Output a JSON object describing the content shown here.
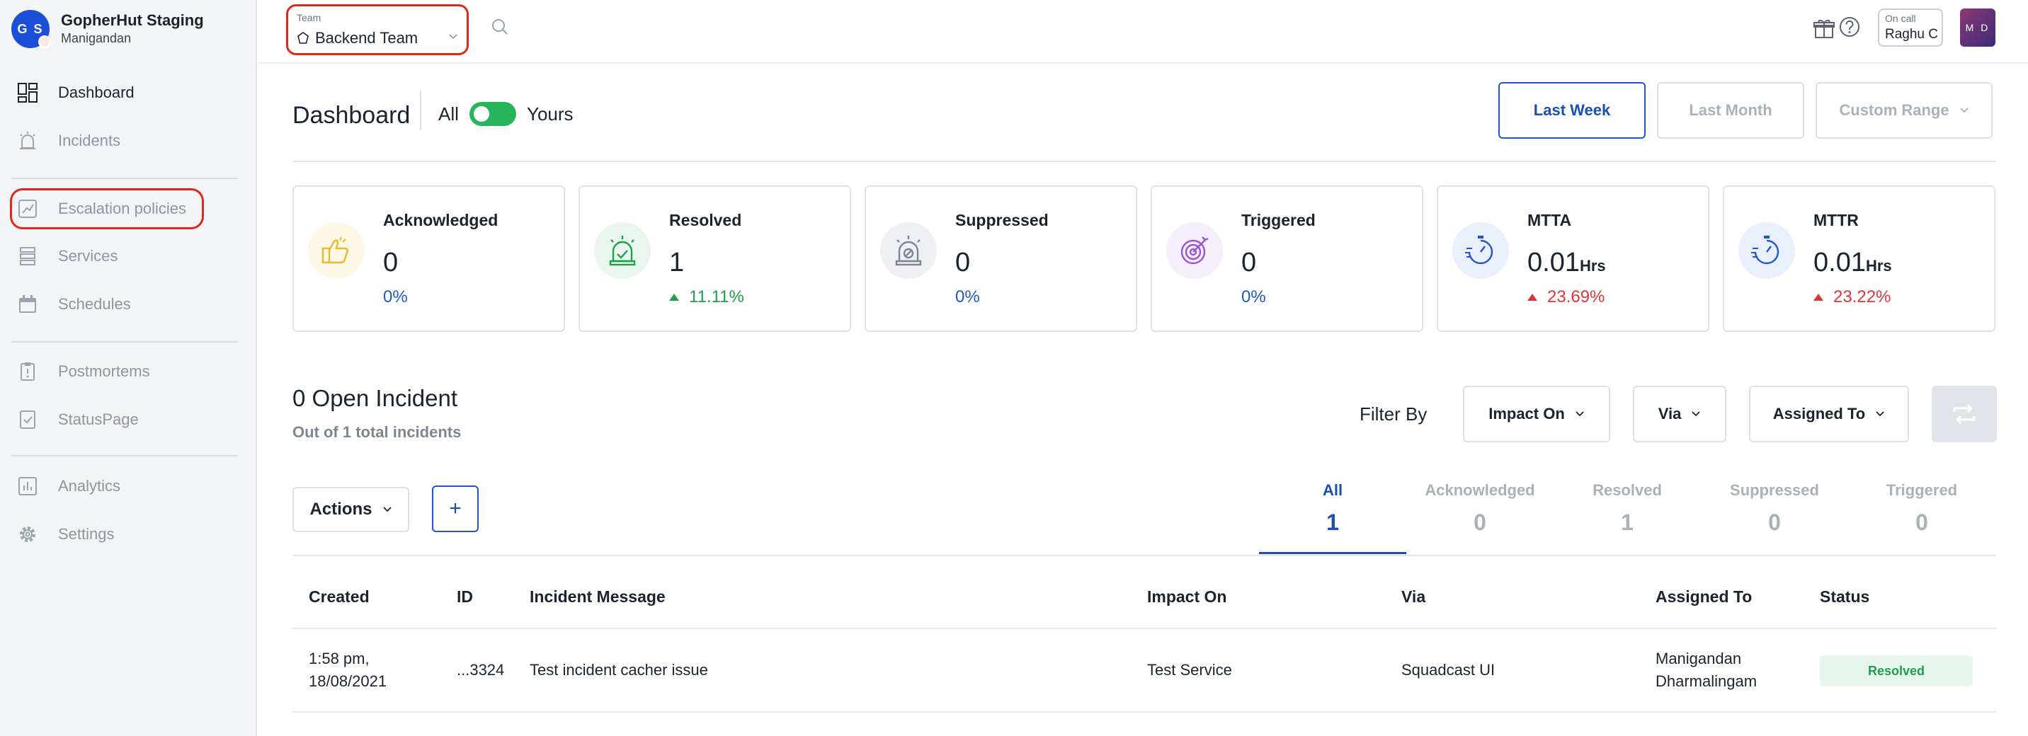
{
  "org": {
    "initials": "G S",
    "name": "GopherHut Staging",
    "user": "Manigandan"
  },
  "sidebar": {
    "items": [
      {
        "label": "Dashboard",
        "icon": "dashboard-icon"
      },
      {
        "label": "Incidents",
        "icon": "incident-icon"
      },
      {
        "label": "Escalation policies",
        "icon": "escalation-icon"
      },
      {
        "label": "Services",
        "icon": "services-icon"
      },
      {
        "label": "Schedules",
        "icon": "calendar-icon"
      },
      {
        "label": "Postmortems",
        "icon": "postmortem-icon"
      },
      {
        "label": "StatusPage",
        "icon": "statuspage-icon"
      },
      {
        "label": "Analytics",
        "icon": "analytics-icon"
      },
      {
        "label": "Settings",
        "icon": "gear-icon"
      }
    ]
  },
  "topbar": {
    "team_caption": "Team",
    "team_value": "Backend Team",
    "oncall_caption": "On call",
    "oncall_value": "Raghu C",
    "user_initials": "M D"
  },
  "header": {
    "title": "Dashboard",
    "toggle_left": "All",
    "toggle_right": "Yours",
    "range_buttons": [
      "Last Week",
      "Last Month",
      "Custom Range"
    ]
  },
  "cards": [
    {
      "title": "Acknowledged",
      "value": "0",
      "unit": "",
      "pct": "0%",
      "trend": "none",
      "color": "#2057c8"
    },
    {
      "title": "Resolved",
      "value": "1",
      "unit": "",
      "pct": "11.11%",
      "trend": "up",
      "color": "#1fa04c"
    },
    {
      "title": "Suppressed",
      "value": "0",
      "unit": "",
      "pct": "0%",
      "trend": "none",
      "color": "#2057c8"
    },
    {
      "title": "Triggered",
      "value": "0",
      "unit": "",
      "pct": "0%",
      "trend": "none",
      "color": "#2057c8"
    },
    {
      "title": "MTTA",
      "value": "0.01",
      "unit": "Hrs",
      "pct": "23.69%",
      "trend": "up",
      "color": "#e0343a"
    },
    {
      "title": "MTTR",
      "value": "0.01",
      "unit": "Hrs",
      "pct": "23.22%",
      "trend": "up",
      "color": "#e0343a"
    }
  ],
  "incidents": {
    "title": "0 Open Incident",
    "subtitle": "Out of 1 total incidents",
    "filter_label": "Filter By",
    "filters": [
      "Impact On",
      "Via",
      "Assigned To"
    ],
    "actions_label": "Actions",
    "add_label": "+",
    "tabs": [
      {
        "label": "All",
        "count": "1"
      },
      {
        "label": "Acknowledged",
        "count": "0"
      },
      {
        "label": "Resolved",
        "count": "1"
      },
      {
        "label": "Suppressed",
        "count": "0"
      },
      {
        "label": "Triggered",
        "count": "0"
      }
    ],
    "columns": [
      "Created",
      "ID",
      "Incident Message",
      "Impact On",
      "Via",
      "Assigned To",
      "Status"
    ],
    "rows": [
      {
        "created_time": "1:58 pm,",
        "created_date": "18/08/2021",
        "id": "...3324",
        "message": "Test incident cacher issue",
        "impact": "Test Service",
        "via": "Squadcast UI",
        "assigned_first": "Manigandan",
        "assigned_last": "Dharmalingam",
        "status": "Resolved"
      }
    ]
  }
}
